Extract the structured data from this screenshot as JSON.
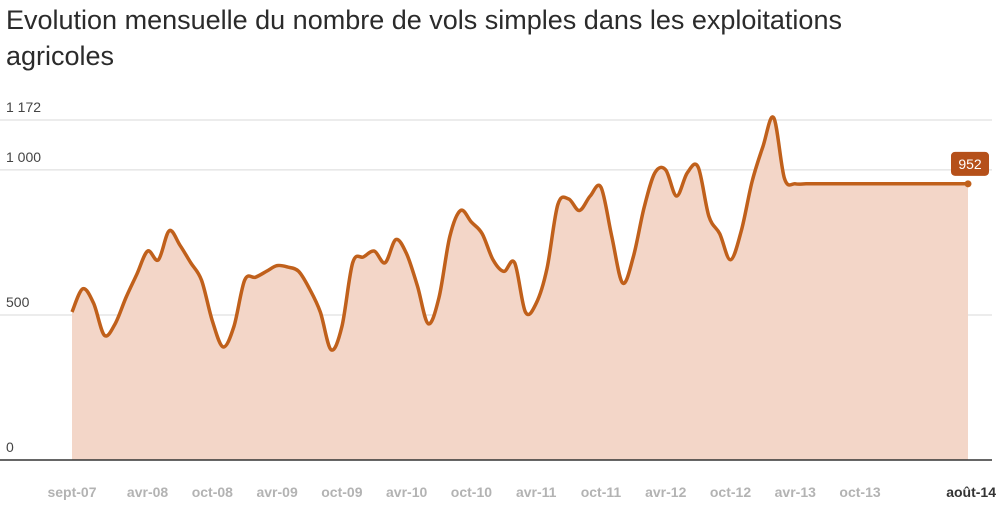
{
  "chart_data": {
    "type": "area",
    "title": "Evolution mensuelle du nombre de vols simples dans les exploitations agricoles",
    "ylim": [
      0,
      1172
    ],
    "yticks": [
      {
        "value": 0,
        "label": "0"
      },
      {
        "value": 500,
        "label": "500"
      },
      {
        "value": 1000,
        "label": "1 000"
      },
      {
        "value": 1172,
        "label": "1 172"
      }
    ],
    "xticks": [
      {
        "index": 0,
        "label": "sept-07"
      },
      {
        "index": 7,
        "label": "avr-08"
      },
      {
        "index": 13,
        "label": "oct-08"
      },
      {
        "index": 19,
        "label": "avr-09"
      },
      {
        "index": 25,
        "label": "oct-09"
      },
      {
        "index": 31,
        "label": "avr-10"
      },
      {
        "index": 37,
        "label": "oct-10"
      },
      {
        "index": 43,
        "label": "avr-11"
      },
      {
        "index": 49,
        "label": "oct-11"
      },
      {
        "index": 55,
        "label": "avr-12"
      },
      {
        "index": 61,
        "label": "oct-12"
      },
      {
        "index": 67,
        "label": "avr-13"
      },
      {
        "index": 73,
        "label": "oct-13"
      },
      {
        "index": 83,
        "label": "août-14"
      }
    ],
    "values": [
      510,
      590,
      540,
      430,
      470,
      560,
      640,
      720,
      690,
      790,
      740,
      680,
      620,
      480,
      390,
      460,
      620,
      630,
      650,
      670,
      665,
      650,
      590,
      510,
      380,
      460,
      680,
      700,
      720,
      680,
      760,
      710,
      600,
      470,
      560,
      770,
      860,
      820,
      780,
      690,
      650,
      680,
      510,
      540,
      660,
      880,
      900,
      860,
      910,
      940,
      770,
      610,
      700,
      870,
      990,
      1000,
      910,
      990,
      1010,
      840,
      780,
      690,
      790,
      960,
      1080,
      1180,
      970,
      952,
      952,
      952,
      952,
      952,
      952,
      952,
      952,
      952,
      952,
      952,
      952,
      952,
      952,
      952,
      952,
      952
    ],
    "last_value_label": "952",
    "colors": {
      "line": "#c0601b",
      "fill": "#f3d6c8",
      "callout": "#b5501a",
      "grid": "#d9d9d9"
    }
  }
}
